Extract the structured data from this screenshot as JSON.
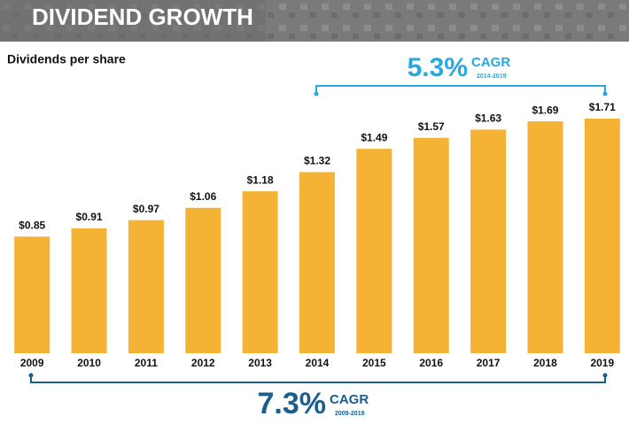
{
  "chart_data": {
    "type": "bar",
    "title": "DIVIDEND GROWTH",
    "subtitle": "Dividends per share",
    "categories": [
      "2009",
      "2010",
      "2011",
      "2012",
      "2013",
      "2014",
      "2015",
      "2016",
      "2017",
      "2018",
      "2019"
    ],
    "values": [
      0.85,
      0.91,
      0.97,
      1.06,
      1.18,
      1.32,
      1.49,
      1.57,
      1.63,
      1.69,
      1.71
    ],
    "value_labels": [
      "$0.85",
      "$0.91",
      "$0.97",
      "$1.06",
      "$1.18",
      "$1.32",
      "$1.49",
      "$1.57",
      "$1.63",
      "$1.69",
      "$1.71"
    ],
    "color": "#f5b335",
    "annotations": [
      {
        "rate": "5.3%",
        "label": "CAGR",
        "period": "2014-2019",
        "color": "#29a8e0"
      },
      {
        "rate": "7.3%",
        "label": "CAGR",
        "period": "2009-2019",
        "color": "#1b5e8c"
      }
    ]
  }
}
